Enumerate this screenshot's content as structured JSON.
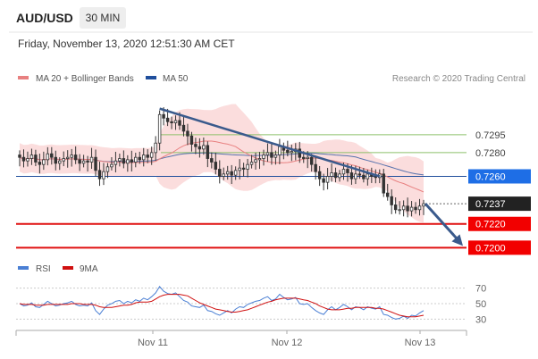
{
  "header": {
    "symbol": "AUD/USD",
    "timeframe": "30 MIN",
    "datetime": "Friday, November 13, 2020 12:51:30 AM CET"
  },
  "legend": {
    "ma20_label": "MA 20 + Bollinger Bands",
    "ma50_label": "MA 50",
    "credit": "Research © 2020 Trading Central"
  },
  "rsi_legend": {
    "rsi_label": "RSI",
    "ma_label": "9MA"
  },
  "colors": {
    "ma20": "#e88080",
    "ma50": "#1f4e9c",
    "band_fill": "#fbd9d9",
    "candle": "#333333",
    "trendline": "#3a5a8c",
    "resistance_line": "#8cc06a",
    "pivot_line": "#1f4e9c",
    "support_line": "#e01010",
    "last_price_bg": "#222222",
    "pivot_bg": "#1e6ee6",
    "support_bg": "#f20000",
    "rsi": "#4a7fd4",
    "rsi_ma": "#d01010",
    "axis_text": "#666666"
  },
  "chart_data": {
    "type": "candlestick",
    "price_range": [
      0.7189,
      0.7337
    ],
    "x_labels": [
      "Nov 11",
      "Nov 12",
      "Nov 13"
    ],
    "levels": [
      {
        "value": 0.7295,
        "label": "0.7295",
        "kind": "resistance"
      },
      {
        "value": 0.728,
        "label": "0.7280",
        "kind": "resistance"
      },
      {
        "value": 0.726,
        "label": "0.7260",
        "kind": "pivot"
      },
      {
        "value": 0.7237,
        "label": "0.7237",
        "kind": "last"
      },
      {
        "value": 0.722,
        "label": "0.7220",
        "kind": "support"
      },
      {
        "value": 0.72,
        "label": "0.7200",
        "kind": "support"
      }
    ],
    "trendline": {
      "from_index": 35,
      "from_value": 0.7317,
      "to_index": 90,
      "to_value": 0.726
    },
    "close": [
      0.7276,
      0.7273,
      0.7275,
      0.7278,
      0.7272,
      0.727,
      0.7274,
      0.7279,
      0.7276,
      0.7271,
      0.7273,
      0.7275,
      0.7276,
      0.7278,
      0.7274,
      0.7271,
      0.7273,
      0.7272,
      0.7276,
      0.7265,
      0.7258,
      0.7264,
      0.7268,
      0.727,
      0.7273,
      0.7275,
      0.7271,
      0.7274,
      0.7272,
      0.7276,
      0.7274,
      0.7278,
      0.7276,
      0.728,
      0.7288,
      0.7312,
      0.7309,
      0.7306,
      0.7305,
      0.7307,
      0.7303,
      0.7298,
      0.7294,
      0.7287,
      0.7285,
      0.7283,
      0.7286,
      0.7275,
      0.7272,
      0.7266,
      0.726,
      0.7262,
      0.7264,
      0.7261,
      0.7265,
      0.7267,
      0.7266,
      0.727,
      0.7272,
      0.7274,
      0.7275,
      0.7278,
      0.728,
      0.7276,
      0.7278,
      0.7285,
      0.7282,
      0.728,
      0.7281,
      0.7283,
      0.7276,
      0.7275,
      0.7276,
      0.727,
      0.7264,
      0.7258,
      0.7255,
      0.726,
      0.7263,
      0.7259,
      0.7262,
      0.7266,
      0.7263,
      0.7258,
      0.7262,
      0.7261,
      0.7258,
      0.7262,
      0.726,
      0.7259,
      0.7262,
      0.7246,
      0.7243,
      0.7236,
      0.7232,
      0.7232,
      0.7235,
      0.7231,
      0.7234,
      0.7232,
      0.7235,
      0.7237
    ],
    "rsi_range": [
      20,
      80
    ],
    "rsi_ticks": [
      70,
      50,
      30
    ],
    "rsi": [
      50,
      47,
      48,
      51,
      46,
      45,
      49,
      53,
      50,
      47,
      48,
      50,
      51,
      53,
      49,
      47,
      48,
      47,
      51,
      41,
      36,
      43,
      48,
      50,
      53,
      54,
      50,
      53,
      51,
      55,
      53,
      57,
      55,
      59,
      64,
      72,
      66,
      63,
      62,
      64,
      59,
      54,
      52,
      47,
      46,
      45,
      48,
      41,
      40,
      37,
      35,
      38,
      41,
      38,
      43,
      46,
      45,
      49,
      51,
      53,
      54,
      57,
      59,
      54,
      56,
      62,
      58,
      55,
      56,
      58,
      50,
      49,
      50,
      45,
      41,
      38,
      36,
      42,
      46,
      42,
      45,
      49,
      46,
      42,
      46,
      45,
      42,
      46,
      44,
      43,
      46,
      36,
      35,
      32,
      30,
      31,
      34,
      31,
      35,
      34,
      38,
      41
    ],
    "rsi_ma": [
      50,
      49,
      49,
      49,
      48,
      48,
      48,
      49,
      49,
      49,
      49,
      49,
      49,
      50,
      50,
      50,
      49,
      49,
      49,
      48,
      46,
      45,
      45,
      45,
      46,
      47,
      48,
      48,
      49,
      51,
      52,
      52,
      52,
      53,
      56,
      59,
      61,
      62,
      62,
      62,
      62,
      61,
      60,
      57,
      54,
      51,
      49,
      47,
      45,
      43,
      42,
      41,
      40,
      39,
      39,
      40,
      41,
      42,
      44,
      46,
      48,
      50,
      52,
      53,
      55,
      56,
      57,
      57,
      57,
      57,
      56,
      55,
      54,
      52,
      50,
      47,
      45,
      43,
      42,
      42,
      42,
      43,
      44,
      44,
      45,
      45,
      45,
      45,
      45,
      44,
      44,
      43,
      41,
      39,
      37,
      35,
      34,
      33,
      33,
      33,
      34,
      35
    ]
  }
}
